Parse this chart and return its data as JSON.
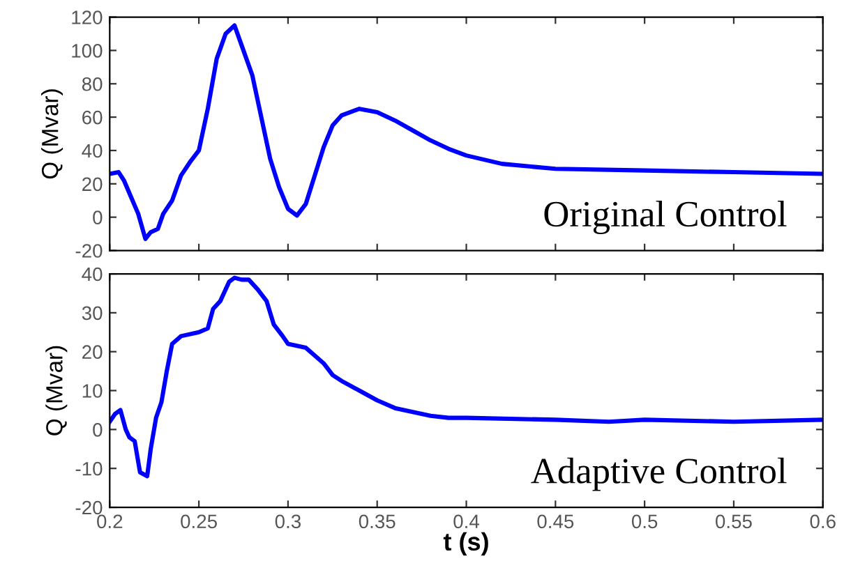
{
  "chart_data": [
    {
      "type": "line",
      "ylabel": "Q (Mvar)",
      "annotations": [
        "Original Control"
      ],
      "xlim": [
        0.2,
        0.6
      ],
      "xticks": [
        0.2,
        0.25,
        0.3,
        0.35,
        0.4,
        0.45,
        0.5,
        0.55,
        0.6
      ],
      "ylim": [
        -20,
        120
      ],
      "yticks": [
        -20,
        0,
        20,
        40,
        60,
        80,
        100,
        120
      ],
      "tick_labels": "y",
      "grid": false,
      "legend": false,
      "series": [
        {
          "color": "#0000ff",
          "x": [
            0.2,
            0.205,
            0.208,
            0.212,
            0.216,
            0.22,
            0.223,
            0.227,
            0.23,
            0.235,
            0.24,
            0.245,
            0.25,
            0.255,
            0.26,
            0.265,
            0.27,
            0.275,
            0.28,
            0.285,
            0.29,
            0.295,
            0.3,
            0.305,
            0.31,
            0.315,
            0.32,
            0.325,
            0.33,
            0.34,
            0.35,
            0.36,
            0.37,
            0.38,
            0.39,
            0.4,
            0.42,
            0.45,
            0.5,
            0.55,
            0.6
          ],
          "values": [
            26,
            27,
            22,
            12,
            2,
            -13,
            -9,
            -7,
            2,
            10,
            25,
            33,
            40,
            65,
            95,
            110,
            115,
            100,
            85,
            60,
            35,
            18,
            5,
            1,
            8,
            25,
            42,
            55,
            61,
            65,
            63,
            58,
            52,
            46,
            41,
            37,
            32,
            29,
            28,
            27,
            26
          ]
        }
      ]
    },
    {
      "type": "line",
      "xlabel": "t (s)",
      "ylabel": "Q (Mvar)",
      "annotations": [
        "Adaptive Control"
      ],
      "xlim": [
        0.2,
        0.6
      ],
      "xticks": [
        0.2,
        0.25,
        0.3,
        0.35,
        0.4,
        0.45,
        0.5,
        0.55,
        0.6
      ],
      "ylim": [
        -20,
        40
      ],
      "yticks": [
        -20,
        -10,
        0,
        10,
        20,
        30,
        40
      ],
      "grid": false,
      "legend": false,
      "series": [
        {
          "color": "#0000ff",
          "x": [
            0.2,
            0.203,
            0.206,
            0.209,
            0.211,
            0.214,
            0.217,
            0.221,
            0.223,
            0.226,
            0.229,
            0.232,
            0.235,
            0.24,
            0.25,
            0.255,
            0.258,
            0.262,
            0.267,
            0.27,
            0.274,
            0.278,
            0.283,
            0.288,
            0.292,
            0.297,
            0.3,
            0.31,
            0.315,
            0.32,
            0.325,
            0.33,
            0.34,
            0.35,
            0.36,
            0.37,
            0.38,
            0.39,
            0.4,
            0.45,
            0.48,
            0.5,
            0.55,
            0.6
          ],
          "values": [
            2,
            4,
            5,
            0,
            -2,
            -3,
            -11,
            -12,
            -5,
            3,
            7,
            15,
            22,
            24,
            25,
            26,
            31,
            33,
            38,
            39,
            38.5,
            38.5,
            36,
            33,
            27,
            24,
            22,
            21,
            19,
            17,
            14,
            12.5,
            10,
            7.5,
            5.5,
            4.5,
            3.5,
            3,
            3,
            2.5,
            2,
            2.5,
            2,
            2.5
          ]
        }
      ]
    }
  ]
}
